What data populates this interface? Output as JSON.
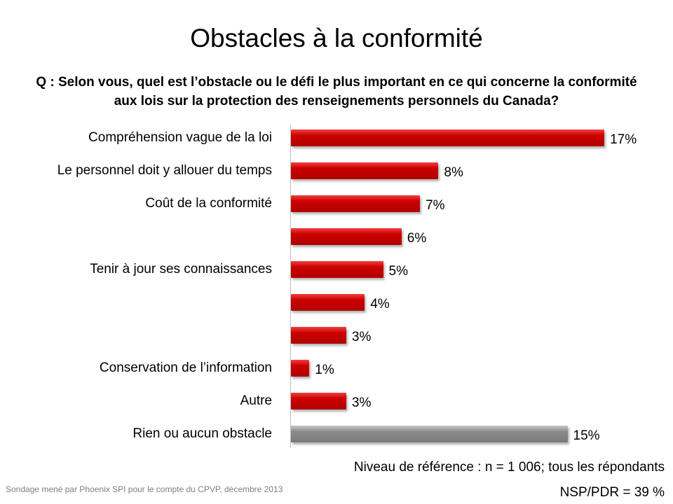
{
  "title": "Obstacles à la conformité",
  "question": "Q : Selon vous, quel est l’obstacle ou le défi le plus important en ce qui concerne la conformité aux lois sur la protection des renseignements personnels du Canada?",
  "chart_data": {
    "type": "bar",
    "orientation": "horizontal",
    "categories": [
      "Compréhension vague de la loi",
      "Le personnel doit y allouer du temps",
      "Coût de la conformité",
      "",
      "Tenir à jour ses connaissances",
      "",
      "",
      "Conservation de l’information",
      "Autre",
      "Rien ou aucun obstacle"
    ],
    "values": [
      17,
      8,
      7,
      6,
      5,
      4,
      3,
      1,
      3,
      15
    ],
    "value_labels": [
      "17%",
      "8%",
      "7%",
      "6%",
      "5%",
      "4%",
      "3%",
      "1%",
      "3%",
      "15%"
    ],
    "colors": [
      "#cc0000",
      "#cc0000",
      "#cc0000",
      "#cc0000",
      "#cc0000",
      "#cc0000",
      "#cc0000",
      "#cc0000",
      "#cc0000",
      "#8c8c8c"
    ],
    "xlim": [
      0,
      17
    ],
    "grid": false
  },
  "base_note": "Niveau de référence : n = 1 006; tous les répondants",
  "dk_note": "NSP/PDR = 39 %",
  "source": "Sondage mené par Phoenix SPI pour le compte du CPVP, décembre 2013"
}
